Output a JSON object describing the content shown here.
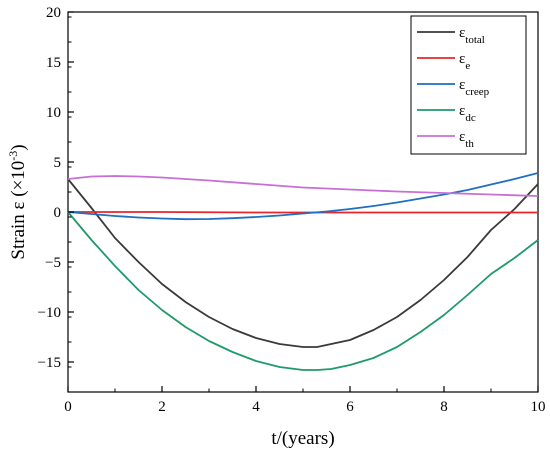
{
  "chart_data": {
    "type": "line",
    "title": "",
    "xlabel": "t/(years)",
    "ylabel": {
      "prefix": "Strain ε (×10",
      "superscript": "-3",
      "suffix": ")"
    },
    "xlim": [
      0,
      10
    ],
    "ylim": [
      -18,
      20
    ],
    "xticks": [
      0,
      2,
      4,
      6,
      8,
      10
    ],
    "yticks": [
      -15,
      -10,
      -5,
      0,
      5,
      10,
      15,
      20
    ],
    "ytick_labels": [
      "−15",
      "−10",
      "−5",
      "0",
      "5",
      "10",
      "15",
      "20"
    ],
    "grid": false,
    "legend_position": "top-right",
    "series": [
      {
        "key": "total",
        "label_base": "ε",
        "label_sub": "total",
        "color": "#3a3a3a",
        "x": [
          0,
          0.5,
          1,
          1.5,
          2,
          2.5,
          3,
          3.5,
          4,
          4.5,
          5,
          5.3,
          5.6,
          6,
          6.5,
          7,
          7.5,
          8,
          8.5,
          9,
          9.5,
          10
        ],
        "y": [
          3.3,
          0.4,
          -2.6,
          -5.0,
          -7.2,
          -9.0,
          -10.5,
          -11.7,
          -12.6,
          -13.2,
          -13.5,
          -13.5,
          -13.2,
          -12.8,
          -11.8,
          -10.5,
          -8.8,
          -6.8,
          -4.5,
          -1.8,
          0.3,
          2.8
        ]
      },
      {
        "key": "e",
        "label_base": "ε",
        "label_sub": "e",
        "color": "#e8252a",
        "x": [
          0,
          2,
          4,
          6,
          8,
          10
        ],
        "y": [
          0,
          0,
          -0.05,
          -0.05,
          -0.05,
          -0.05
        ]
      },
      {
        "key": "creep",
        "label_base": "ε",
        "label_sub": "creep",
        "color": "#1f6fc2",
        "x": [
          0,
          0.5,
          1,
          1.5,
          2,
          2.5,
          3,
          3.5,
          4,
          4.5,
          5,
          5.5,
          6,
          6.5,
          7,
          7.5,
          8,
          8.5,
          9,
          9.5,
          10
        ],
        "y": [
          0,
          -0.2,
          -0.4,
          -0.55,
          -0.65,
          -0.72,
          -0.7,
          -0.62,
          -0.5,
          -0.35,
          -0.15,
          0.05,
          0.3,
          0.6,
          0.95,
          1.35,
          1.75,
          2.2,
          2.75,
          3.3,
          3.9
        ]
      },
      {
        "key": "dc",
        "label_base": "ε",
        "label_sub": "dc",
        "color": "#1f9a6a",
        "x": [
          0,
          0.5,
          1,
          1.5,
          2,
          2.5,
          3,
          3.5,
          4,
          4.5,
          5,
          5.3,
          5.6,
          6,
          6.5,
          7,
          7.5,
          8,
          8.5,
          9,
          9.5,
          10
        ],
        "y": [
          0,
          -2.8,
          -5.4,
          -7.8,
          -9.8,
          -11.5,
          -12.9,
          -14.0,
          -14.9,
          -15.5,
          -15.8,
          -15.8,
          -15.7,
          -15.3,
          -14.6,
          -13.5,
          -12.0,
          -10.3,
          -8.3,
          -6.2,
          -4.6,
          -2.8
        ]
      },
      {
        "key": "th",
        "label_base": "ε",
        "label_sub": "th",
        "color": "#c86fd6",
        "x": [
          0,
          0.5,
          1,
          1.5,
          2,
          3,
          4,
          5,
          6,
          7,
          8,
          9,
          10
        ],
        "y": [
          3.3,
          3.55,
          3.6,
          3.55,
          3.45,
          3.15,
          2.8,
          2.45,
          2.25,
          2.05,
          1.9,
          1.75,
          1.6
        ]
      }
    ]
  }
}
